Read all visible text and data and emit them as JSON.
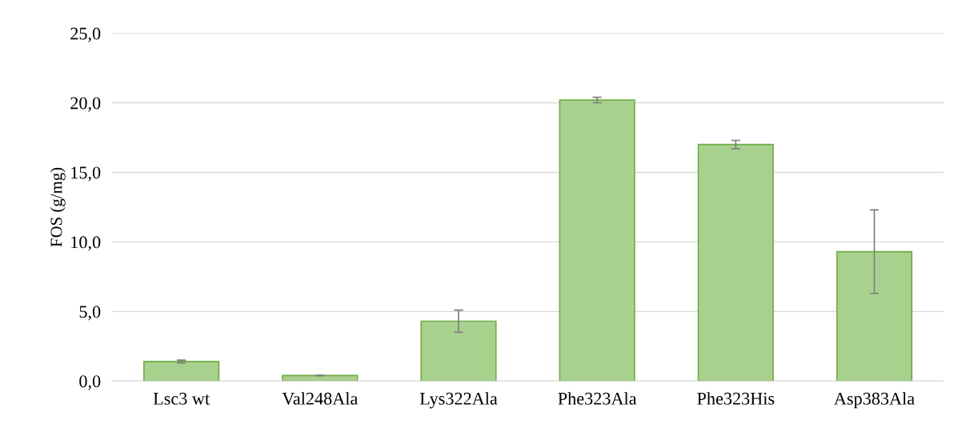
{
  "chart_data": {
    "type": "bar",
    "ylabel": "FOS (g/mg)",
    "categories": [
      "Lsc3 wt",
      "Val248Ala",
      "Lys322Ala",
      "Phe323Ala",
      "Phe323His",
      "Asp383Ala"
    ],
    "values": [
      1.4,
      0.4,
      4.3,
      20.2,
      17.0,
      9.3
    ],
    "errors": [
      0.1,
      0.02,
      0.8,
      0.2,
      0.3,
      3.0
    ],
    "color": "#a9d18e",
    "ylim": [
      0,
      25
    ],
    "yticks": [
      {
        "value": 0,
        "label": "0,0"
      },
      {
        "value": 5,
        "label": "5,0"
      },
      {
        "value": 10,
        "label": "10,0"
      },
      {
        "value": 15,
        "label": "15,0"
      },
      {
        "value": 20,
        "label": "20,0"
      },
      {
        "value": 25,
        "label": "25,0"
      }
    ],
    "grid": "y"
  }
}
